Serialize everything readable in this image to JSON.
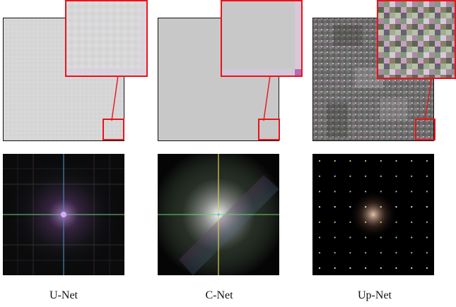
{
  "figure": {
    "columns": [
      {
        "label": "U-Net"
      },
      {
        "label": "C-Net"
      },
      {
        "label": "Up-Net"
      }
    ],
    "colors": {
      "zoom_border": "#e8141a",
      "panel_border": "#111111",
      "unet_fill": "#d7d7d7",
      "cnet_fill": "#c9c9c9",
      "spectrum_background": "#000000"
    }
  }
}
